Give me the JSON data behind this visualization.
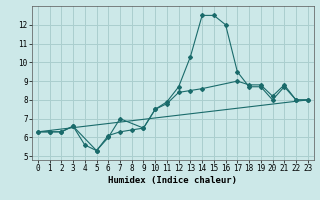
{
  "xlabel": "Humidex (Indice chaleur)",
  "xlim": [
    -0.5,
    23.5
  ],
  "ylim": [
    4.8,
    13.0
  ],
  "yticks": [
    5,
    6,
    7,
    8,
    9,
    10,
    11,
    12
  ],
  "xticks": [
    0,
    1,
    2,
    3,
    4,
    5,
    6,
    7,
    8,
    9,
    10,
    11,
    12,
    13,
    14,
    15,
    16,
    17,
    18,
    19,
    20,
    21,
    22,
    23
  ],
  "bg_color": "#cce8e8",
  "line_color": "#1a6b6b",
  "grid_color": "#aacece",
  "lines": [
    {
      "x": [
        0,
        1,
        2,
        3,
        4,
        5,
        6,
        7,
        8,
        9,
        10,
        11,
        12,
        13,
        14,
        15,
        16,
        17,
        18,
        19,
        20,
        21,
        22,
        23
      ],
      "y": [
        6.3,
        6.3,
        6.3,
        6.6,
        5.6,
        5.3,
        6.1,
        6.3,
        6.4,
        6.5,
        7.5,
        7.9,
        8.7,
        10.3,
        12.5,
        12.5,
        12.0,
        9.5,
        8.7,
        8.7,
        8.0,
        8.7,
        8.0,
        8.0
      ],
      "marker": "D",
      "markersize": 2.0
    },
    {
      "x": [
        0,
        1,
        2,
        3,
        5,
        6,
        7,
        9,
        10,
        11,
        12,
        13,
        14,
        17,
        18,
        19,
        20,
        21,
        22,
        23
      ],
      "y": [
        6.3,
        6.3,
        6.3,
        6.6,
        5.3,
        6.0,
        7.0,
        6.5,
        7.5,
        7.8,
        8.4,
        8.5,
        8.6,
        9.0,
        8.8,
        8.8,
        8.2,
        8.8,
        8.0,
        8.0
      ],
      "marker": "D",
      "markersize": 2.0
    },
    {
      "x": [
        0,
        23
      ],
      "y": [
        6.3,
        8.0
      ],
      "marker": null,
      "markersize": 0
    }
  ]
}
